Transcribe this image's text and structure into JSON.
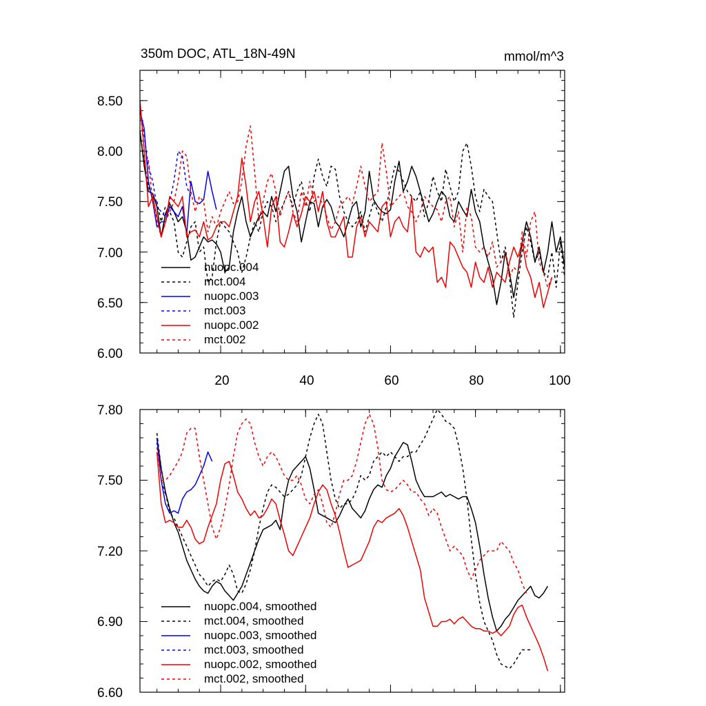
{
  "chart_data": [
    {
      "type": "line",
      "title": "350m DOC, ATL_18N-49N",
      "units": "mmol/m^3",
      "xlim": [
        1,
        101
      ],
      "ylim": [
        6.0,
        8.8
      ],
      "x_tick_labels": [
        "20",
        "40",
        "60",
        "80",
        "100"
      ],
      "y_tick_labels": [
        "6.00",
        "6.50",
        "7.00",
        "7.50",
        "8.00",
        "8.50"
      ],
      "legend": [
        "nuopc.004",
        "mct.004",
        "nuopc.003",
        "mct.003",
        "nuopc.002",
        "mct.002"
      ],
      "series": [
        {
          "name": "nuopc.004",
          "color": "#000000",
          "dash": "solid",
          "x0": 1,
          "values": [
            8.2,
            7.85,
            7.6,
            7.58,
            7.45,
            7.15,
            7.38,
            7.48,
            7.4,
            7.3,
            7.35,
            7.2,
            6.92,
            6.95,
            7.05,
            7.15,
            7.1,
            7.12,
            7.08,
            7.0,
            6.8,
            6.85,
            7.2,
            7.4,
            7.55,
            7.3,
            7.15,
            7.25,
            7.35,
            7.4,
            7.35,
            7.55,
            7.4,
            7.6,
            7.8,
            7.85,
            7.55,
            7.4,
            7.1,
            7.3,
            7.5,
            7.48,
            7.25,
            7.45,
            7.52,
            7.45,
            7.3,
            7.25,
            7.15,
            7.3,
            7.45,
            7.5,
            7.25,
            7.4,
            7.8,
            7.52,
            7.45,
            7.4,
            7.38,
            7.42,
            7.7,
            7.9,
            7.6,
            7.7,
            7.85,
            7.75,
            7.6,
            7.45,
            7.3,
            7.38,
            7.5,
            7.6,
            7.55,
            7.35,
            7.3,
            7.5,
            7.42,
            7.35,
            7.62,
            7.4,
            7.3,
            7.05,
            6.9,
            6.75,
            6.48,
            6.7,
            7.0,
            6.8,
            6.55,
            6.8,
            7.1,
            7.3,
            7.15,
            6.9,
            7.05,
            6.8,
            7.0,
            7.3,
            7.0,
            7.15,
            6.85
          ]
        },
        {
          "name": "mct.004",
          "color": "#000000",
          "dash": "4,4",
          "x0": 1,
          "values": [
            8.18,
            7.9,
            7.65,
            7.55,
            7.5,
            7.3,
            7.45,
            7.4,
            7.3,
            7.0,
            6.95,
            7.1,
            7.25,
            7.3,
            7.0,
            7.05,
            6.7,
            6.75,
            7.1,
            7.3,
            7.25,
            7.2,
            7.1,
            7.0,
            6.8,
            6.95,
            7.15,
            7.3,
            7.2,
            7.4,
            7.5,
            7.45,
            7.3,
            7.4,
            7.5,
            7.6,
            7.45,
            7.6,
            7.7,
            7.5,
            7.4,
            7.75,
            7.92,
            7.75,
            7.65,
            7.85,
            7.82,
            7.55,
            7.4,
            7.3,
            7.25,
            7.3,
            7.4,
            7.2,
            7.35,
            7.5,
            7.4,
            7.3,
            7.45,
            7.65,
            7.85,
            7.8,
            7.7,
            7.6,
            7.55,
            7.5,
            7.6,
            7.35,
            7.5,
            7.75,
            7.6,
            7.5,
            7.82,
            7.65,
            7.5,
            7.6,
            8.0,
            8.08,
            7.85,
            7.55,
            7.4,
            7.62,
            7.55,
            7.5,
            7.2,
            6.9,
            7.05,
            6.75,
            6.35,
            6.7,
            7.0,
            7.25,
            7.1,
            6.9,
            7.0,
            6.8,
            6.75,
            7.0,
            6.65,
            7.1,
            6.75
          ]
        },
        {
          "name": "nuopc.003",
          "color": "#0000ee",
          "dash": "solid",
          "x0": 1,
          "values": [
            8.4,
            8.22,
            7.7,
            7.5,
            7.25,
            7.3,
            7.3,
            7.45,
            7.4,
            7.35,
            7.45,
            7.18,
            7.7,
            7.5,
            7.48,
            7.52,
            7.8,
            7.6,
            7.42
          ]
        },
        {
          "name": "mct.003",
          "color": "#0000ee",
          "dash": "4,4",
          "x0": 1,
          "values": [
            8.38,
            8.15,
            7.85,
            7.7,
            7.45,
            7.4,
            7.35,
            7.5,
            7.7,
            8.0,
            7.95,
            7.65,
            7.55
          ]
        },
        {
          "name": "nuopc.002",
          "color": "#ee0000",
          "dash": "solid",
          "x0": 1,
          "values": [
            8.5,
            8.0,
            7.45,
            7.55,
            7.35,
            7.15,
            7.3,
            7.55,
            7.5,
            7.45,
            7.55,
            7.15,
            7.2,
            7.22,
            7.15,
            7.3,
            7.12,
            7.15,
            7.25,
            7.3,
            7.3,
            7.25,
            7.4,
            7.55,
            7.93,
            7.65,
            7.3,
            7.5,
            7.6,
            7.35,
            7.05,
            7.45,
            7.55,
            7.1,
            7.05,
            7.2,
            7.38,
            7.25,
            7.38,
            7.55,
            7.5,
            7.6,
            7.4,
            7.6,
            7.3,
            7.15,
            7.15,
            7.25,
            7.35,
            6.95,
            6.95,
            7.25,
            7.35,
            7.15,
            7.3,
            7.25,
            7.2,
            7.45,
            7.5,
            7.15,
            7.3,
            7.35,
            7.25,
            7.2,
            7.55,
            7.0,
            6.95,
            7.05,
            7.0,
            7.05,
            6.7,
            6.75,
            6.65,
            7.1,
            7.05,
            6.95,
            6.85,
            6.8,
            6.65,
            6.9,
            6.75,
            6.7,
            6.85,
            6.65,
            6.8,
            6.75,
            6.7,
            6.9,
            7.05,
            6.95,
            7.1,
            6.85,
            6.75,
            6.55,
            6.7,
            6.45,
            6.6,
            6.75
          ]
        },
        {
          "name": "mct.002",
          "color": "#ee0000",
          "dash": "4,4",
          "x0": 1,
          "values": [
            8.45,
            8.0,
            7.9,
            7.5,
            7.3,
            7.15,
            7.3,
            7.4,
            7.5,
            7.7,
            8.0,
            7.95,
            7.6,
            7.4,
            7.55,
            7.5,
            7.2,
            7.35,
            7.25,
            7.4,
            7.5,
            7.6,
            7.48,
            7.5,
            7.7,
            8.05,
            8.25,
            7.8,
            7.3,
            7.5,
            7.7,
            7.78,
            7.6,
            7.35,
            7.5,
            7.6,
            7.4,
            7.3,
            7.6,
            7.45,
            7.7,
            7.5,
            7.55,
            7.48,
            7.35,
            7.22,
            7.3,
            7.45,
            7.5,
            7.55,
            7.48,
            7.65,
            7.85,
            7.65,
            7.5,
            7.55,
            7.6,
            8.08,
            7.8,
            7.45,
            7.5,
            7.55,
            7.6,
            7.45,
            7.4,
            7.3,
            7.4,
            7.55,
            7.5,
            7.45,
            7.42,
            7.3,
            7.5,
            7.55,
            7.25,
            7.4,
            7.0,
            7.45,
            7.35,
            7.05,
            7.0,
            7.05,
            6.95,
            7.1,
            6.85,
            6.9,
            7.0,
            6.75,
            6.85,
            6.8,
            7.2,
            6.95,
            7.3,
            7.4,
            6.9,
            6.8,
            6.65,
            6.75
          ]
        }
      ]
    },
    {
      "type": "line",
      "title": "",
      "xlim": [
        1,
        101
      ],
      "ylim": [
        6.6,
        7.8
      ],
      "y_tick_labels": [
        "6.60",
        "6.90",
        "7.20",
        "7.50",
        "7.80"
      ],
      "legend": [
        "nuopc.004, smoothed",
        "mct.004, smoothed",
        "nuopc.003, smoothed",
        "mct.003, smoothed",
        "nuopc.002, smoothed",
        "mct.002, smoothed"
      ],
      "series": [
        {
          "name": "nuopc.004, smoothed",
          "color": "#000000",
          "dash": "solid",
          "x0": 5,
          "values": [
            7.68,
            7.55,
            7.45,
            7.38,
            7.32,
            7.28,
            7.22,
            7.16,
            7.12,
            7.08,
            7.05,
            7.03,
            7.02,
            7.05,
            7.07,
            7.06,
            7.03,
            7.01,
            6.99,
            7.02,
            7.05,
            7.1,
            7.15,
            7.2,
            7.25,
            7.29,
            7.3,
            7.31,
            7.33,
            7.29,
            7.42,
            7.5,
            7.54,
            7.56,
            7.58,
            7.6,
            7.55,
            7.46,
            7.36,
            7.35,
            7.34,
            7.33,
            7.32,
            7.35,
            7.39,
            7.42,
            7.38,
            7.36,
            7.34,
            7.37,
            7.42,
            7.46,
            7.48,
            7.47,
            7.52,
            7.55,
            7.6,
            7.63,
            7.66,
            7.65,
            7.58,
            7.5,
            7.46,
            7.43,
            7.43,
            7.43,
            7.44,
            7.45,
            7.43,
            7.44,
            7.43,
            7.42,
            7.43,
            7.43,
            7.38,
            7.32,
            7.22,
            7.1,
            7.0,
            6.92,
            6.86,
            6.88,
            6.91,
            6.93,
            6.96,
            6.99,
            7.01,
            7.03,
            7.05,
            7.01,
            7.0,
            7.02,
            7.05
          ]
        },
        {
          "name": "mct.004, smoothed",
          "color": "#000000",
          "dash": "4,4",
          "x0": 5,
          "values": [
            7.7,
            7.55,
            7.45,
            7.36,
            7.34,
            7.3,
            7.26,
            7.22,
            7.18,
            7.14,
            7.1,
            7.08,
            7.05,
            7.07,
            7.08,
            7.07,
            7.1,
            7.14,
            7.1,
            7.03,
            7.02,
            7.06,
            7.12,
            7.2,
            7.3,
            7.38,
            7.45,
            7.48,
            7.47,
            7.45,
            7.43,
            7.44,
            7.46,
            7.48,
            7.52,
            7.6,
            7.68,
            7.74,
            7.78,
            7.74,
            7.62,
            7.5,
            7.42,
            7.38,
            7.4,
            7.4,
            7.42,
            7.46,
            7.52,
            7.5,
            7.52,
            7.58,
            7.6,
            7.62,
            7.6,
            7.62,
            7.6,
            7.58,
            7.6,
            7.6,
            7.62,
            7.62,
            7.65,
            7.68,
            7.72,
            7.76,
            7.8,
            7.78,
            7.75,
            7.74,
            7.72,
            7.65,
            7.55,
            7.42,
            7.25,
            7.1,
            6.98,
            6.9,
            6.86,
            6.82,
            6.76,
            6.72,
            6.71,
            6.7,
            6.72,
            6.75,
            6.78,
            6.78,
            6.78
          ]
        },
        {
          "name": "nuopc.003, smoothed",
          "color": "#0000ee",
          "dash": "solid",
          "x0": 5,
          "values": [
            7.68,
            7.5,
            7.4,
            7.36,
            7.37,
            7.36,
            7.42,
            7.45,
            7.46,
            7.48,
            7.52,
            7.56,
            7.62,
            7.58
          ]
        },
        {
          "name": "mct.003, smoothed",
          "color": "#0000ee",
          "dash": "4,4",
          "x0": 5,
          "values": [
            7.66,
            7.5,
            7.44
          ]
        },
        {
          "name": "nuopc.002, smoothed",
          "color": "#ee0000",
          "dash": "solid",
          "x0": 5,
          "values": [
            7.62,
            7.4,
            7.32,
            7.33,
            7.32,
            7.3,
            7.3,
            7.33,
            7.3,
            7.25,
            7.23,
            7.24,
            7.3,
            7.35,
            7.4,
            7.5,
            7.57,
            7.58,
            7.52,
            7.45,
            7.42,
            7.38,
            7.35,
            7.37,
            7.34,
            7.35,
            7.38,
            7.42,
            7.4,
            7.33,
            7.27,
            7.2,
            7.18,
            7.22,
            7.26,
            7.3,
            7.34,
            7.4,
            7.45,
            7.48,
            7.46,
            7.4,
            7.35,
            7.28,
            7.2,
            7.13,
            7.14,
            7.15,
            7.16,
            7.2,
            7.24,
            7.3,
            7.33,
            7.32,
            7.34,
            7.35,
            7.36,
            7.38,
            7.35,
            7.3,
            7.24,
            7.18,
            7.12,
            7.0,
            6.94,
            6.88,
            6.88,
            6.9,
            6.9,
            6.91,
            6.89,
            6.91,
            6.92,
            6.9,
            6.88,
            6.87,
            6.87,
            6.86,
            6.86,
            6.85,
            6.86,
            6.84,
            6.86,
            6.88,
            6.93,
            6.96,
            6.97,
            6.92,
            6.88,
            6.84,
            6.8,
            6.75,
            6.69
          ]
        },
        {
          "name": "mct.002, smoothed",
          "color": "#ee0000",
          "dash": "4,4",
          "x0": 5,
          "values": [
            7.64,
            7.5,
            7.5,
            7.52,
            7.55,
            7.58,
            7.62,
            7.7,
            7.72,
            7.72,
            7.6,
            7.5,
            7.4,
            7.3,
            7.25,
            7.3,
            7.38,
            7.48,
            7.6,
            7.7,
            7.74,
            7.76,
            7.74,
            7.66,
            7.6,
            7.56,
            7.6,
            7.62,
            7.6,
            7.56,
            7.52,
            7.5,
            7.5,
            7.52,
            7.48,
            7.42,
            7.4,
            7.44,
            7.46,
            7.4,
            7.32,
            7.3,
            7.36,
            7.44,
            7.5,
            7.5,
            7.52,
            7.58,
            7.66,
            7.74,
            7.78,
            7.74,
            7.64,
            7.5,
            7.46,
            7.45,
            7.46,
            7.48,
            7.5,
            7.48,
            7.45,
            7.45,
            7.42,
            7.4,
            7.35,
            7.38,
            7.36,
            7.3,
            7.25,
            7.2,
            7.22,
            7.2,
            7.18,
            7.12,
            7.08,
            7.12,
            7.16,
            7.18,
            7.2,
            7.2,
            7.2,
            7.24,
            7.22,
            7.2,
            7.15,
            7.12,
            7.06,
            7.02
          ]
        }
      ]
    }
  ]
}
